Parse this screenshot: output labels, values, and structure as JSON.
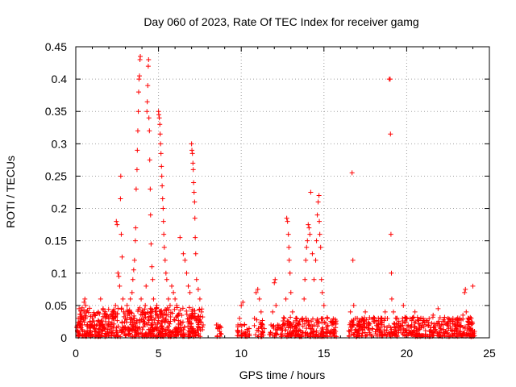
{
  "chart_data": {
    "type": "scatter",
    "title": "Day 060 of 2023, Rate Of TEC Index for receiver gamg",
    "xlabel": "GPS time / hours",
    "ylabel": "ROTI / TECUs",
    "xlim": [
      0,
      25
    ],
    "ylim": [
      0,
      0.45
    ],
    "grid": true,
    "marker": "+",
    "color": "#ff0000",
    "x_ticks": [
      "0",
      "5",
      "10",
      "15",
      "20",
      "25"
    ],
    "y_ticks": [
      "0",
      "0.05",
      "0.1",
      "0.15",
      "0.2",
      "0.25",
      "0.3",
      "0.35",
      "0.4",
      "0.45"
    ],
    "series": [
      {
        "points": [
          [
            0.1,
            0.01
          ],
          [
            0.15,
            0.03
          ],
          [
            0.2,
            0.045
          ],
          [
            0.25,
            0.02
          ],
          [
            0.3,
            0.015
          ],
          [
            0.4,
            0.02
          ],
          [
            0.5,
            0.055
          ],
          [
            0.55,
            0.06
          ],
          [
            0.6,
            0.05
          ],
          [
            0.7,
            0.02
          ],
          [
            0.8,
            0.015
          ],
          [
            0.9,
            0.01
          ],
          [
            1.0,
            0.02
          ],
          [
            1.1,
            0.015
          ],
          [
            1.2,
            0.01
          ],
          [
            1.3,
            0.02
          ],
          [
            1.4,
            0.025
          ],
          [
            1.5,
            0.06
          ],
          [
            1.6,
            0.02
          ],
          [
            1.7,
            0.015
          ],
          [
            1.8,
            0.03
          ],
          [
            1.9,
            0.02
          ],
          [
            2.0,
            0.025
          ],
          [
            2.1,
            0.035
          ],
          [
            2.2,
            0.03
          ],
          [
            2.3,
            0.04
          ],
          [
            2.4,
            0.05
          ],
          [
            2.45,
            0.18
          ],
          [
            2.5,
            0.175
          ],
          [
            2.55,
            0.1
          ],
          [
            2.6,
            0.095
          ],
          [
            2.65,
            0.08
          ],
          [
            2.7,
            0.215
          ],
          [
            2.72,
            0.25
          ],
          [
            2.75,
            0.16
          ],
          [
            2.8,
            0.125
          ],
          [
            2.85,
            0.06
          ],
          [
            2.9,
            0.04
          ],
          [
            3.0,
            0.03
          ],
          [
            3.1,
            0.05
          ],
          [
            3.2,
            0.04
          ],
          [
            3.3,
            0.06
          ],
          [
            3.4,
            0.07
          ],
          [
            3.45,
            0.09
          ],
          [
            3.5,
            0.105
          ],
          [
            3.55,
            0.12
          ],
          [
            3.6,
            0.15
          ],
          [
            3.62,
            0.17
          ],
          [
            3.65,
            0.23
          ],
          [
            3.7,
            0.26
          ],
          [
            3.72,
            0.29
          ],
          [
            3.75,
            0.32
          ],
          [
            3.78,
            0.35
          ],
          [
            3.8,
            0.38
          ],
          [
            3.82,
            0.4
          ],
          [
            3.85,
            0.405
          ],
          [
            3.88,
            0.43
          ],
          [
            3.9,
            0.435
          ],
          [
            3.95,
            0.06
          ],
          [
            4.0,
            0.04
          ],
          [
            4.1,
            0.03
          ],
          [
            4.2,
            0.05
          ],
          [
            4.25,
            0.08
          ],
          [
            4.3,
            0.35
          ],
          [
            4.32,
            0.365
          ],
          [
            4.35,
            0.39
          ],
          [
            4.38,
            0.42
          ],
          [
            4.4,
            0.43
          ],
          [
            4.42,
            0.34
          ],
          [
            4.45,
            0.32
          ],
          [
            4.47,
            0.275
          ],
          [
            4.5,
            0.23
          ],
          [
            4.52,
            0.19
          ],
          [
            4.55,
            0.145
          ],
          [
            4.6,
            0.11
          ],
          [
            4.65,
            0.09
          ],
          [
            4.7,
            0.06
          ],
          [
            4.8,
            0.04
          ],
          [
            4.9,
            0.05
          ],
          [
            5.0,
            0.35
          ],
          [
            5.02,
            0.345
          ],
          [
            5.05,
            0.34
          ],
          [
            5.08,
            0.33
          ],
          [
            5.1,
            0.315
          ],
          [
            5.12,
            0.3
          ],
          [
            5.15,
            0.285
          ],
          [
            5.18,
            0.265
          ],
          [
            5.2,
            0.25
          ],
          [
            5.22,
            0.235
          ],
          [
            5.25,
            0.215
          ],
          [
            5.28,
            0.2
          ],
          [
            5.3,
            0.18
          ],
          [
            5.32,
            0.16
          ],
          [
            5.35,
            0.14
          ],
          [
            5.4,
            0.12
          ],
          [
            5.45,
            0.1
          ],
          [
            5.5,
            0.09
          ],
          [
            5.6,
            0.06
          ],
          [
            5.7,
            0.05
          ],
          [
            5.8,
            0.08
          ],
          [
            5.9,
            0.07
          ],
          [
            6.0,
            0.06
          ],
          [
            6.1,
            0.05
          ],
          [
            6.3,
            0.155
          ],
          [
            6.5,
            0.13
          ],
          [
            6.6,
            0.12
          ],
          [
            6.7,
            0.1
          ],
          [
            6.8,
            0.08
          ],
          [
            6.9,
            0.07
          ],
          [
            7.0,
            0.3
          ],
          [
            7.02,
            0.29
          ],
          [
            7.05,
            0.285
          ],
          [
            7.08,
            0.27
          ],
          [
            7.1,
            0.26
          ],
          [
            7.12,
            0.24
          ],
          [
            7.15,
            0.225
          ],
          [
            7.18,
            0.21
          ],
          [
            7.2,
            0.185
          ],
          [
            7.22,
            0.155
          ],
          [
            7.25,
            0.13
          ],
          [
            7.3,
            0.09
          ],
          [
            7.4,
            0.075
          ],
          [
            7.5,
            0.06
          ],
          [
            7.6,
            0.04
          ],
          [
            7.7,
            0.02
          ],
          [
            8.5,
            0.02
          ],
          [
            8.6,
            0.015
          ],
          [
            8.7,
            0.01
          ],
          [
            9.8,
            0.02
          ],
          [
            9.9,
            0.03
          ],
          [
            10.0,
            0.05
          ],
          [
            10.1,
            0.055
          ],
          [
            10.2,
            0.02
          ],
          [
            10.4,
            0.01
          ],
          [
            10.8,
            0.03
          ],
          [
            10.9,
            0.07
          ],
          [
            11.0,
            0.075
          ],
          [
            11.1,
            0.06
          ],
          [
            11.2,
            0.04
          ],
          [
            11.3,
            0.02
          ],
          [
            11.8,
            0.02
          ],
          [
            11.9,
            0.04
          ],
          [
            12.0,
            0.085
          ],
          [
            12.05,
            0.09
          ],
          [
            12.1,
            0.05
          ],
          [
            12.2,
            0.02
          ],
          [
            12.5,
            0.02
          ],
          [
            12.6,
            0.03
          ],
          [
            12.7,
            0.06
          ],
          [
            12.75,
            0.185
          ],
          [
            12.8,
            0.18
          ],
          [
            12.85,
            0.16
          ],
          [
            12.88,
            0.14
          ],
          [
            12.9,
            0.12
          ],
          [
            12.95,
            0.1
          ],
          [
            13.0,
            0.07
          ],
          [
            13.1,
            0.04
          ],
          [
            13.3,
            0.03
          ],
          [
            13.5,
            0.02
          ],
          [
            13.7,
            0.03
          ],
          [
            13.8,
            0.06
          ],
          [
            13.85,
            0.09
          ],
          [
            13.9,
            0.12
          ],
          [
            13.95,
            0.14
          ],
          [
            14.0,
            0.15
          ],
          [
            14.05,
            0.175
          ],
          [
            14.1,
            0.17
          ],
          [
            14.15,
            0.16
          ],
          [
            14.2,
            0.225
          ],
          [
            14.3,
            0.13
          ],
          [
            14.4,
            0.09
          ],
          [
            14.5,
            0.12
          ],
          [
            14.55,
            0.15
          ],
          [
            14.6,
            0.19
          ],
          [
            14.65,
            0.21
          ],
          [
            14.7,
            0.22
          ],
          [
            14.72,
            0.18
          ],
          [
            14.75,
            0.16
          ],
          [
            14.8,
            0.14
          ],
          [
            14.85,
            0.09
          ],
          [
            14.9,
            0.07
          ],
          [
            15.0,
            0.05
          ],
          [
            15.2,
            0.03
          ],
          [
            15.5,
            0.02
          ],
          [
            15.7,
            0.01
          ],
          [
            16.6,
            0.04
          ],
          [
            16.7,
            0.255
          ],
          [
            16.75,
            0.12
          ],
          [
            16.8,
            0.05
          ],
          [
            16.9,
            0.03
          ],
          [
            17.0,
            0.02
          ],
          [
            17.3,
            0.03
          ],
          [
            17.5,
            0.04
          ],
          [
            17.7,
            0.02
          ],
          [
            18.0,
            0.03
          ],
          [
            18.3,
            0.02
          ],
          [
            18.5,
            0.03
          ],
          [
            18.7,
            0.04
          ],
          [
            18.95,
            0.4
          ],
          [
            19.0,
            0.4
          ],
          [
            19.02,
            0.315
          ],
          [
            19.05,
            0.16
          ],
          [
            19.08,
            0.1
          ],
          [
            19.1,
            0.06
          ],
          [
            19.2,
            0.04
          ],
          [
            19.4,
            0.03
          ],
          [
            19.6,
            0.02
          ],
          [
            19.8,
            0.05
          ],
          [
            20.0,
            0.03
          ],
          [
            20.3,
            0.02
          ],
          [
            20.5,
            0.04
          ],
          [
            20.8,
            0.02
          ],
          [
            21.0,
            0.03
          ],
          [
            21.3,
            0.02
          ],
          [
            21.6,
            0.035
          ],
          [
            21.9,
            0.045
          ],
          [
            22.2,
            0.02
          ],
          [
            22.5,
            0.03
          ],
          [
            22.8,
            0.025
          ],
          [
            23.1,
            0.02
          ],
          [
            23.4,
            0.035
          ],
          [
            23.5,
            0.07
          ],
          [
            23.55,
            0.075
          ],
          [
            23.6,
            0.04
          ],
          [
            23.7,
            0.02
          ],
          [
            23.8,
            0.015
          ],
          [
            23.9,
            0.03
          ],
          [
            24.0,
            0.08
          ],
          [
            24.1,
            0.01
          ]
        ]
      }
    ],
    "dense_bands": [
      {
        "x": [
          0.05,
          7.7
        ],
        "y_max": 0.045,
        "density": 14
      },
      {
        "x": [
          8.5,
          8.8
        ],
        "y_max": 0.018,
        "density": 6
      },
      {
        "x": [
          9.7,
          10.5
        ],
        "y_max": 0.02,
        "density": 6
      },
      {
        "x": [
          10.7,
          11.4
        ],
        "y_max": 0.03,
        "density": 6
      },
      {
        "x": [
          11.7,
          12.4
        ],
        "y_max": 0.02,
        "density": 6
      },
      {
        "x": [
          12.4,
          15.8
        ],
        "y_max": 0.03,
        "density": 10
      },
      {
        "x": [
          16.5,
          24.1
        ],
        "y_max": 0.03,
        "density": 10
      }
    ]
  }
}
